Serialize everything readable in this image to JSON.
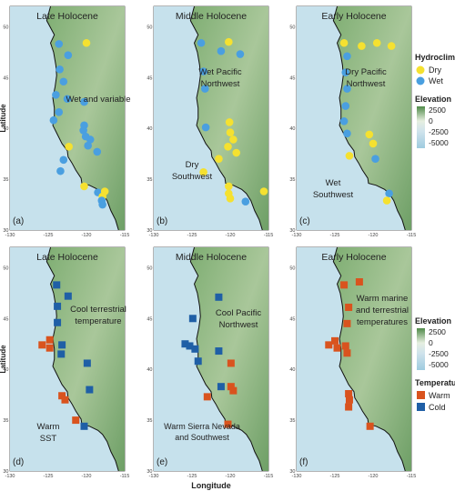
{
  "axis": {
    "xlabel": "Longitude",
    "ylabel": "Latitude",
    "x_ticks": [
      "-130",
      "-125",
      "-120",
      "-115"
    ],
    "y_ticks": [
      "30",
      "35",
      "40",
      "45",
      "50"
    ]
  },
  "panels": [
    {
      "id": "a",
      "tag": "(a)",
      "title": "Late Holocene",
      "labels": [
        "Wet and variable"
      ]
    },
    {
      "id": "b",
      "tag": "(b)",
      "title": "Middle Holocene",
      "labels": [
        "Wet Pacific",
        "Northwest",
        "Dry",
        "Southwest"
      ]
    },
    {
      "id": "c",
      "tag": "(c)",
      "title": "Early Holocene",
      "labels": [
        "Dry Pacific",
        "Northwest",
        "Wet",
        "Southwest"
      ]
    },
    {
      "id": "d",
      "tag": "(d)",
      "title": "Late Holocene",
      "labels": [
        "Cool terrestrial",
        "temperature",
        "Warm",
        "SST"
      ]
    },
    {
      "id": "e",
      "tag": "(e)",
      "title": "Middle Holocene",
      "labels": [
        "Cool Pacific",
        "Northwest",
        "Warm Sierra Nevada",
        "and Southwest"
      ]
    },
    {
      "id": "f",
      "tag": "(f)",
      "title": "Early Holocene",
      "labels": [
        "Warm marine",
        "and terrestrial",
        "temperatures"
      ]
    }
  ],
  "legend_hydro": {
    "title": "Hydroclimate",
    "items": [
      {
        "label": "Dry",
        "color": "#f5e130"
      },
      {
        "label": "Wet",
        "color": "#4a9fe0"
      }
    ]
  },
  "legend_elev_top": {
    "title": "Elevation",
    "ticks": [
      "2500",
      "0",
      "-2500",
      "-5000"
    ]
  },
  "legend_elev_bottom": {
    "title": "Elevation",
    "ticks": [
      "2500",
      "0",
      "-2500",
      "-5000"
    ]
  },
  "legend_temp": {
    "title": "Temperature",
    "items": [
      {
        "label": "Warm",
        "color": "#d9531e"
      },
      {
        "label": "Cold",
        "color": "#1f5fa6"
      }
    ]
  },
  "colors": {
    "dry": "#f5e130",
    "wet": "#4a9fe0",
    "warm": "#d9531e",
    "cold": "#1f5fa6",
    "ocean": "#c6e1ec",
    "land": "#8fb87e"
  },
  "map_data": {
    "extent": {
      "lon": [
        -130,
        -115
      ],
      "lat": [
        30,
        52
      ]
    },
    "sites": {
      "a": [
        {
          "lon": -123.6,
          "lat": 48.3,
          "type": "wet"
        },
        {
          "lon": -120.0,
          "lat": 48.4,
          "type": "dry"
        },
        {
          "lon": -122.4,
          "lat": 47.2,
          "type": "wet"
        },
        {
          "lon": -123.5,
          "lat": 45.8,
          "type": "wet"
        },
        {
          "lon": -123.0,
          "lat": 44.6,
          "type": "wet"
        },
        {
          "lon": -124.0,
          "lat": 43.3,
          "type": "wet"
        },
        {
          "lon": -122.5,
          "lat": 42.9,
          "type": "wet"
        },
        {
          "lon": -120.3,
          "lat": 42.6,
          "type": "wet"
        },
        {
          "lon": -123.6,
          "lat": 41.6,
          "type": "wet"
        },
        {
          "lon": -124.3,
          "lat": 40.8,
          "type": "wet"
        },
        {
          "lon": -120.3,
          "lat": 40.3,
          "type": "wet"
        },
        {
          "lon": -120.4,
          "lat": 39.8,
          "type": "wet"
        },
        {
          "lon": -120.1,
          "lat": 39.2,
          "type": "wet"
        },
        {
          "lon": -119.5,
          "lat": 38.9,
          "type": "wet"
        },
        {
          "lon": -119.8,
          "lat": 38.3,
          "type": "wet"
        },
        {
          "lon": -122.3,
          "lat": 38.2,
          "type": "dry"
        },
        {
          "lon": -118.6,
          "lat": 37.7,
          "type": "wet"
        },
        {
          "lon": -123.0,
          "lat": 36.9,
          "type": "wet"
        },
        {
          "lon": -123.4,
          "lat": 35.8,
          "type": "wet"
        },
        {
          "lon": -120.3,
          "lat": 34.3,
          "type": "dry"
        },
        {
          "lon": -118.5,
          "lat": 33.7,
          "type": "wet"
        },
        {
          "lon": -117.6,
          "lat": 33.8,
          "type": "dry"
        },
        {
          "lon": -117.9,
          "lat": 33.3,
          "type": "dry"
        },
        {
          "lon": -118.0,
          "lat": 32.9,
          "type": "wet"
        },
        {
          "lon": -117.9,
          "lat": 32.5,
          "type": "wet"
        }
      ],
      "b": [
        {
          "lon": -123.8,
          "lat": 48.4,
          "type": "wet"
        },
        {
          "lon": -120.2,
          "lat": 48.5,
          "type": "dry"
        },
        {
          "lon": -121.2,
          "lat": 47.6,
          "type": "wet"
        },
        {
          "lon": -118.7,
          "lat": 47.3,
          "type": "wet"
        },
        {
          "lon": -123.5,
          "lat": 45.6,
          "type": "wet"
        },
        {
          "lon": -123.3,
          "lat": 43.9,
          "type": "wet"
        },
        {
          "lon": -123.2,
          "lat": 40.1,
          "type": "wet"
        },
        {
          "lon": -120.1,
          "lat": 40.6,
          "type": "dry"
        },
        {
          "lon": -120.0,
          "lat": 39.6,
          "type": "dry"
        },
        {
          "lon": -119.6,
          "lat": 38.9,
          "type": "dry"
        },
        {
          "lon": -120.3,
          "lat": 38.2,
          "type": "dry"
        },
        {
          "lon": -119.2,
          "lat": 37.6,
          "type": "dry"
        },
        {
          "lon": -121.5,
          "lat": 37.0,
          "type": "dry"
        },
        {
          "lon": -123.5,
          "lat": 35.7,
          "type": "dry"
        },
        {
          "lon": -120.2,
          "lat": 34.3,
          "type": "dry"
        },
        {
          "lon": -120.2,
          "lat": 33.6,
          "type": "dry"
        },
        {
          "lon": -120.0,
          "lat": 33.1,
          "type": "dry"
        },
        {
          "lon": -118.0,
          "lat": 32.8,
          "type": "wet"
        },
        {
          "lon": -115.6,
          "lat": 33.8,
          "type": "dry"
        }
      ],
      "c": [
        {
          "lon": -123.8,
          "lat": 48.4,
          "type": "dry"
        },
        {
          "lon": -123.4,
          "lat": 47.1,
          "type": "wet"
        },
        {
          "lon": -121.5,
          "lat": 48.1,
          "type": "dry"
        },
        {
          "lon": -119.5,
          "lat": 48.4,
          "type": "dry"
        },
        {
          "lon": -117.6,
          "lat": 48.1,
          "type": "dry"
        },
        {
          "lon": -123.6,
          "lat": 45.5,
          "type": "wet"
        },
        {
          "lon": -123.4,
          "lat": 43.9,
          "type": "wet"
        },
        {
          "lon": -123.6,
          "lat": 42.2,
          "type": "wet"
        },
        {
          "lon": -123.8,
          "lat": 40.7,
          "type": "wet"
        },
        {
          "lon": -123.4,
          "lat": 39.5,
          "type": "wet"
        },
        {
          "lon": -120.5,
          "lat": 39.4,
          "type": "dry"
        },
        {
          "lon": -120.0,
          "lat": 38.5,
          "type": "dry"
        },
        {
          "lon": -123.1,
          "lat": 37.3,
          "type": "dry"
        },
        {
          "lon": -119.7,
          "lat": 37.0,
          "type": "wet"
        },
        {
          "lon": -117.9,
          "lat": 33.6,
          "type": "wet"
        },
        {
          "lon": -118.2,
          "lat": 32.9,
          "type": "dry"
        }
      ],
      "d": [
        {
          "lon": -123.9,
          "lat": 48.3,
          "type": "cold"
        },
        {
          "lon": -122.4,
          "lat": 47.2,
          "type": "cold"
        },
        {
          "lon": -123.8,
          "lat": 46.2,
          "type": "cold"
        },
        {
          "lon": -123.8,
          "lat": 44.6,
          "type": "cold"
        },
        {
          "lon": -125.8,
          "lat": 42.4,
          "type": "warm"
        },
        {
          "lon": -124.8,
          "lat": 42.9,
          "type": "warm"
        },
        {
          "lon": -124.8,
          "lat": 42.1,
          "type": "warm"
        },
        {
          "lon": -123.2,
          "lat": 42.4,
          "type": "cold"
        },
        {
          "lon": -123.3,
          "lat": 41.5,
          "type": "cold"
        },
        {
          "lon": -119.9,
          "lat": 40.6,
          "type": "cold"
        },
        {
          "lon": -119.6,
          "lat": 38.0,
          "type": "cold"
        },
        {
          "lon": -123.2,
          "lat": 37.4,
          "type": "warm"
        },
        {
          "lon": -122.8,
          "lat": 37.0,
          "type": "warm"
        },
        {
          "lon": -121.4,
          "lat": 35.0,
          "type": "warm"
        },
        {
          "lon": -120.3,
          "lat": 34.4,
          "type": "cold"
        }
      ],
      "e": [
        {
          "lon": -121.5,
          "lat": 47.1,
          "type": "cold"
        },
        {
          "lon": -124.9,
          "lat": 45.0,
          "type": "cold"
        },
        {
          "lon": -125.9,
          "lat": 42.5,
          "type": "cold"
        },
        {
          "lon": -125.3,
          "lat": 42.3,
          "type": "cold"
        },
        {
          "lon": -124.6,
          "lat": 42.0,
          "type": "cold"
        },
        {
          "lon": -124.2,
          "lat": 40.8,
          "type": "cold"
        },
        {
          "lon": -121.5,
          "lat": 41.8,
          "type": "cold"
        },
        {
          "lon": -119.9,
          "lat": 40.6,
          "type": "warm"
        },
        {
          "lon": -121.2,
          "lat": 38.3,
          "type": "cold"
        },
        {
          "lon": -119.9,
          "lat": 38.3,
          "type": "warm"
        },
        {
          "lon": -119.6,
          "lat": 37.9,
          "type": "warm"
        },
        {
          "lon": -123.0,
          "lat": 37.3,
          "type": "warm"
        },
        {
          "lon": -120.3,
          "lat": 34.6,
          "type": "warm"
        }
      ],
      "f": [
        {
          "lon": -123.8,
          "lat": 48.3,
          "type": "warm"
        },
        {
          "lon": -121.8,
          "lat": 48.6,
          "type": "warm"
        },
        {
          "lon": -123.2,
          "lat": 46.1,
          "type": "warm"
        },
        {
          "lon": -123.4,
          "lat": 44.5,
          "type": "warm"
        },
        {
          "lon": -125.8,
          "lat": 42.4,
          "type": "warm"
        },
        {
          "lon": -125.0,
          "lat": 42.8,
          "type": "warm"
        },
        {
          "lon": -124.7,
          "lat": 42.1,
          "type": "warm"
        },
        {
          "lon": -123.6,
          "lat": 42.3,
          "type": "warm"
        },
        {
          "lon": -123.4,
          "lat": 41.6,
          "type": "warm"
        },
        {
          "lon": -123.2,
          "lat": 37.6,
          "type": "warm"
        },
        {
          "lon": -123.1,
          "lat": 37.0,
          "type": "warm"
        },
        {
          "lon": -120.4,
          "lat": 34.4,
          "type": "warm"
        },
        {
          "lon": -123.2,
          "lat": 36.3,
          "type": "warm"
        }
      ]
    }
  }
}
